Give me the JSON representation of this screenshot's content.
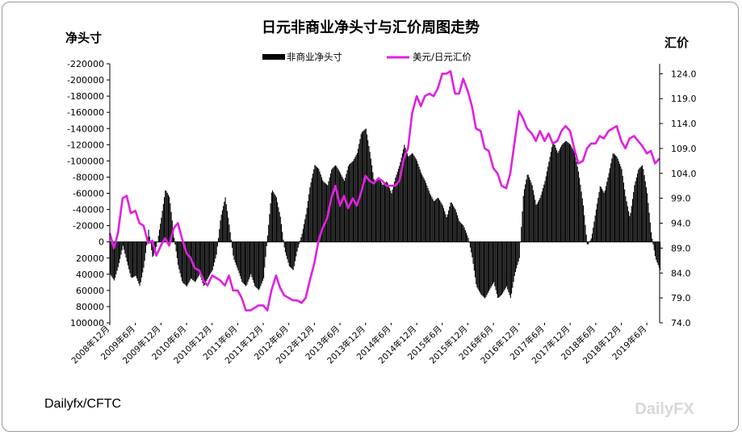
{
  "chart_data": {
    "type": "bar",
    "title": "日元非商业净头寸与汇价周图走势",
    "ylabel": "净头寸",
    "y2label": "汇价",
    "legend": {
      "position": "top",
      "entries": [
        "非商业净头寸",
        "美元/日元汇价"
      ]
    },
    "source": "Dailyfx/CFTC",
    "watermark": "DailyFX",
    "colors": {
      "positions": "#000000",
      "rate": "#e020e0"
    },
    "y_left": {
      "min": -220000,
      "max": 100000,
      "step": 20000,
      "inverted": true,
      "tick_labels": [
        "-220000",
        "-200000",
        "-180000",
        "-160000",
        "-140000",
        "-120000",
        "-100000",
        "-80000",
        "-60000",
        "-40000",
        "-20000",
        "0",
        "20000",
        "40000",
        "60000",
        "80000",
        "100000"
      ]
    },
    "y_right": {
      "min": 74.0,
      "max": 126.0,
      "tick_values": [
        74.0,
        79.0,
        84.0,
        89.0,
        94.0,
        99.0,
        104.0,
        109.0,
        114.0,
        119.0,
        124.0
      ],
      "tick_labels": [
        "74.0",
        "79.0",
        "84.0",
        "89.0",
        "94.0",
        "99.0",
        "104.0",
        "109.0",
        "114.0",
        "119.0",
        "124.0"
      ]
    },
    "x_range": [
      2008.92,
      2019.67
    ],
    "x_ticks": [
      {
        "t": 2008.92,
        "label": "2008年12月"
      },
      {
        "t": 2009.42,
        "label": "2009年6月"
      },
      {
        "t": 2009.92,
        "label": "2009年12月"
      },
      {
        "t": 2010.42,
        "label": "2010年6月"
      },
      {
        "t": 2010.92,
        "label": "2010年12月"
      },
      {
        "t": 2011.42,
        "label": "2011年6月"
      },
      {
        "t": 2011.92,
        "label": "2011年12月"
      },
      {
        "t": 2012.42,
        "label": "2012年6月"
      },
      {
        "t": 2012.92,
        "label": "2012年12月"
      },
      {
        "t": 2013.42,
        "label": "2013年6月"
      },
      {
        "t": 2013.92,
        "label": "2013年12月"
      },
      {
        "t": 2014.42,
        "label": "2014年6月"
      },
      {
        "t": 2014.92,
        "label": "2014年12月"
      },
      {
        "t": 2015.42,
        "label": "2015年6月"
      },
      {
        "t": 2015.92,
        "label": "2015年12月"
      },
      {
        "t": 2016.42,
        "label": "2016年6月"
      },
      {
        "t": 2016.92,
        "label": "2016年12月"
      },
      {
        "t": 2017.42,
        "label": "2017年6月"
      },
      {
        "t": 2017.92,
        "label": "2017年12月"
      },
      {
        "t": 2018.42,
        "label": "2018年6月"
      },
      {
        "t": 2018.92,
        "label": "2018年12月"
      },
      {
        "t": 2019.42,
        "label": "2019年6月"
      }
    ],
    "series": [
      {
        "name": "非商业净头寸",
        "kind": "bar",
        "axis": "left",
        "points": [
          [
            2008.92,
            40000
          ],
          [
            2009.0,
            48000
          ],
          [
            2009.08,
            30000
          ],
          [
            2009.17,
            5000
          ],
          [
            2009.25,
            25000
          ],
          [
            2009.33,
            45000
          ],
          [
            2009.42,
            42000
          ],
          [
            2009.5,
            55000
          ],
          [
            2009.58,
            30000
          ],
          [
            2009.67,
            -15000
          ],
          [
            2009.75,
            20000
          ],
          [
            2009.83,
            5000
          ],
          [
            2009.92,
            -30000
          ],
          [
            2010.0,
            -65000
          ],
          [
            2010.08,
            -55000
          ],
          [
            2010.17,
            -5000
          ],
          [
            2010.25,
            30000
          ],
          [
            2010.33,
            50000
          ],
          [
            2010.42,
            55000
          ],
          [
            2010.5,
            45000
          ],
          [
            2010.58,
            50000
          ],
          [
            2010.67,
            40000
          ],
          [
            2010.75,
            55000
          ],
          [
            2010.83,
            45000
          ],
          [
            2010.92,
            35000
          ],
          [
            2011.0,
            15000
          ],
          [
            2011.08,
            -30000
          ],
          [
            2011.17,
            -55000
          ],
          [
            2011.25,
            -20000
          ],
          [
            2011.33,
            20000
          ],
          [
            2011.42,
            35000
          ],
          [
            2011.5,
            50000
          ],
          [
            2011.58,
            55000
          ],
          [
            2011.67,
            40000
          ],
          [
            2011.75,
            55000
          ],
          [
            2011.83,
            60000
          ],
          [
            2011.92,
            45000
          ],
          [
            2012.0,
            -10000
          ],
          [
            2012.08,
            -65000
          ],
          [
            2012.17,
            -55000
          ],
          [
            2012.25,
            -30000
          ],
          [
            2012.33,
            10000
          ],
          [
            2012.42,
            30000
          ],
          [
            2012.5,
            35000
          ],
          [
            2012.58,
            10000
          ],
          [
            2012.67,
            -10000
          ],
          [
            2012.75,
            -35000
          ],
          [
            2012.83,
            -70000
          ],
          [
            2012.92,
            -95000
          ],
          [
            2013.0,
            -90000
          ],
          [
            2013.08,
            -75000
          ],
          [
            2013.17,
            -70000
          ],
          [
            2013.25,
            -90000
          ],
          [
            2013.33,
            -95000
          ],
          [
            2013.42,
            -85000
          ],
          [
            2013.5,
            -75000
          ],
          [
            2013.58,
            -95000
          ],
          [
            2013.67,
            -100000
          ],
          [
            2013.75,
            -110000
          ],
          [
            2013.83,
            -135000
          ],
          [
            2013.92,
            -140000
          ],
          [
            2014.0,
            -110000
          ],
          [
            2014.08,
            -75000
          ],
          [
            2014.17,
            -80000
          ],
          [
            2014.25,
            -70000
          ],
          [
            2014.33,
            -75000
          ],
          [
            2014.42,
            -60000
          ],
          [
            2014.5,
            -80000
          ],
          [
            2014.58,
            -95000
          ],
          [
            2014.67,
            -120000
          ],
          [
            2014.75,
            -105000
          ],
          [
            2014.83,
            -110000
          ],
          [
            2014.92,
            -100000
          ],
          [
            2015.0,
            -85000
          ],
          [
            2015.08,
            -75000
          ],
          [
            2015.17,
            -60000
          ],
          [
            2015.25,
            -50000
          ],
          [
            2015.33,
            -55000
          ],
          [
            2015.42,
            -45000
          ],
          [
            2015.5,
            -30000
          ],
          [
            2015.58,
            -50000
          ],
          [
            2015.67,
            -40000
          ],
          [
            2015.75,
            -25000
          ],
          [
            2015.83,
            -20000
          ],
          [
            2015.92,
            -5000
          ],
          [
            2016.0,
            20000
          ],
          [
            2016.08,
            55000
          ],
          [
            2016.17,
            65000
          ],
          [
            2016.25,
            70000
          ],
          [
            2016.33,
            60000
          ],
          [
            2016.42,
            50000
          ],
          [
            2016.5,
            70000
          ],
          [
            2016.58,
            65000
          ],
          [
            2016.67,
            55000
          ],
          [
            2016.75,
            70000
          ],
          [
            2016.83,
            40000
          ],
          [
            2016.92,
            20000
          ],
          [
            2017.0,
            -60000
          ],
          [
            2017.08,
            -85000
          ],
          [
            2017.17,
            -70000
          ],
          [
            2017.25,
            -45000
          ],
          [
            2017.33,
            -55000
          ],
          [
            2017.42,
            -75000
          ],
          [
            2017.5,
            -100000
          ],
          [
            2017.58,
            -125000
          ],
          [
            2017.67,
            -110000
          ],
          [
            2017.75,
            -120000
          ],
          [
            2017.83,
            -125000
          ],
          [
            2017.92,
            -120000
          ],
          [
            2018.0,
            -110000
          ],
          [
            2018.08,
            -85000
          ],
          [
            2018.17,
            -45000
          ],
          [
            2018.25,
            5000
          ],
          [
            2018.33,
            -5000
          ],
          [
            2018.42,
            -40000
          ],
          [
            2018.5,
            -70000
          ],
          [
            2018.58,
            -60000
          ],
          [
            2018.67,
            -85000
          ],
          [
            2018.75,
            -110000
          ],
          [
            2018.83,
            -105000
          ],
          [
            2018.92,
            -90000
          ],
          [
            2019.0,
            -55000
          ],
          [
            2019.08,
            -30000
          ],
          [
            2019.17,
            -70000
          ],
          [
            2019.25,
            -90000
          ],
          [
            2019.33,
            -95000
          ],
          [
            2019.42,
            -60000
          ],
          [
            2019.5,
            -10000
          ],
          [
            2019.58,
            20000
          ],
          [
            2019.67,
            35000
          ]
        ]
      },
      {
        "name": "美元/日元汇价",
        "kind": "line",
        "axis": "right",
        "points": [
          [
            2008.92,
            92.0
          ],
          [
            2009.0,
            89.0
          ],
          [
            2009.08,
            92.0
          ],
          [
            2009.17,
            99.0
          ],
          [
            2009.25,
            99.5
          ],
          [
            2009.33,
            96.0
          ],
          [
            2009.42,
            96.5
          ],
          [
            2009.5,
            94.0
          ],
          [
            2009.58,
            93.5
          ],
          [
            2009.67,
            90.0
          ],
          [
            2009.75,
            90.5
          ],
          [
            2009.83,
            87.5
          ],
          [
            2009.92,
            89.5
          ],
          [
            2010.0,
            91.0
          ],
          [
            2010.08,
            89.5
          ],
          [
            2010.17,
            93.0
          ],
          [
            2010.25,
            94.0
          ],
          [
            2010.33,
            91.0
          ],
          [
            2010.42,
            88.0
          ],
          [
            2010.5,
            87.0
          ],
          [
            2010.58,
            85.0
          ],
          [
            2010.67,
            84.5
          ],
          [
            2010.75,
            82.5
          ],
          [
            2010.83,
            81.5
          ],
          [
            2010.92,
            83.5
          ],
          [
            2011.0,
            83.0
          ],
          [
            2011.08,
            82.5
          ],
          [
            2011.17,
            81.5
          ],
          [
            2011.25,
            83.5
          ],
          [
            2011.33,
            80.5
          ],
          [
            2011.42,
            80.5
          ],
          [
            2011.5,
            79.0
          ],
          [
            2011.58,
            76.5
          ],
          [
            2011.67,
            76.5
          ],
          [
            2011.75,
            77.0
          ],
          [
            2011.83,
            77.5
          ],
          [
            2011.92,
            77.5
          ],
          [
            2012.0,
            76.5
          ],
          [
            2012.08,
            80.5
          ],
          [
            2012.17,
            83.5
          ],
          [
            2012.25,
            81.0
          ],
          [
            2012.33,
            79.5
          ],
          [
            2012.42,
            79.0
          ],
          [
            2012.5,
            78.5
          ],
          [
            2012.58,
            78.5
          ],
          [
            2012.67,
            78.0
          ],
          [
            2012.75,
            79.0
          ],
          [
            2012.83,
            82.5
          ],
          [
            2012.92,
            86.0
          ],
          [
            2013.0,
            90.5
          ],
          [
            2013.08,
            93.0
          ],
          [
            2013.17,
            95.0
          ],
          [
            2013.25,
            99.0
          ],
          [
            2013.33,
            101.5
          ],
          [
            2013.42,
            97.5
          ],
          [
            2013.5,
            99.5
          ],
          [
            2013.58,
            97.0
          ],
          [
            2013.67,
            99.0
          ],
          [
            2013.75,
            97.5
          ],
          [
            2013.83,
            100.0
          ],
          [
            2013.92,
            103.5
          ],
          [
            2014.0,
            102.5
          ],
          [
            2014.08,
            102.0
          ],
          [
            2014.17,
            103.0
          ],
          [
            2014.25,
            102.5
          ],
          [
            2014.33,
            101.5
          ],
          [
            2014.42,
            101.5
          ],
          [
            2014.5,
            101.5
          ],
          [
            2014.58,
            102.5
          ],
          [
            2014.67,
            107.0
          ],
          [
            2014.75,
            109.0
          ],
          [
            2014.83,
            116.0
          ],
          [
            2014.92,
            119.5
          ],
          [
            2015.0,
            117.5
          ],
          [
            2015.08,
            119.5
          ],
          [
            2015.17,
            120.0
          ],
          [
            2015.25,
            119.5
          ],
          [
            2015.33,
            121.0
          ],
          [
            2015.42,
            124.0
          ],
          [
            2015.5,
            124.0
          ],
          [
            2015.58,
            124.5
          ],
          [
            2015.67,
            120.0
          ],
          [
            2015.75,
            120.0
          ],
          [
            2015.83,
            123.0
          ],
          [
            2015.92,
            120.5
          ],
          [
            2016.0,
            117.5
          ],
          [
            2016.08,
            113.0
          ],
          [
            2016.17,
            112.5
          ],
          [
            2016.25,
            109.0
          ],
          [
            2016.33,
            108.5
          ],
          [
            2016.42,
            105.0
          ],
          [
            2016.5,
            104.0
          ],
          [
            2016.58,
            101.5
          ],
          [
            2016.67,
            101.0
          ],
          [
            2016.75,
            104.0
          ],
          [
            2016.83,
            110.0
          ],
          [
            2016.92,
            116.5
          ],
          [
            2017.0,
            115.0
          ],
          [
            2017.08,
            113.0
          ],
          [
            2017.17,
            112.0
          ],
          [
            2017.25,
            110.5
          ],
          [
            2017.33,
            112.5
          ],
          [
            2017.42,
            110.5
          ],
          [
            2017.5,
            112.0
          ],
          [
            2017.58,
            110.0
          ],
          [
            2017.67,
            110.5
          ],
          [
            2017.75,
            112.5
          ],
          [
            2017.83,
            113.5
          ],
          [
            2017.92,
            112.5
          ],
          [
            2018.0,
            109.0
          ],
          [
            2018.08,
            106.0
          ],
          [
            2018.17,
            106.5
          ],
          [
            2018.25,
            109.0
          ],
          [
            2018.33,
            110.0
          ],
          [
            2018.42,
            110.0
          ],
          [
            2018.5,
            111.5
          ],
          [
            2018.58,
            111.0
          ],
          [
            2018.67,
            112.5
          ],
          [
            2018.75,
            113.0
          ],
          [
            2018.83,
            113.5
          ],
          [
            2018.92,
            110.5
          ],
          [
            2019.0,
            109.0
          ],
          [
            2019.08,
            111.0
          ],
          [
            2019.17,
            111.5
          ],
          [
            2019.25,
            110.5
          ],
          [
            2019.33,
            109.5
          ],
          [
            2019.42,
            108.0
          ],
          [
            2019.5,
            108.5
          ],
          [
            2019.58,
            106.0
          ],
          [
            2019.67,
            107.0
          ]
        ]
      }
    ]
  }
}
